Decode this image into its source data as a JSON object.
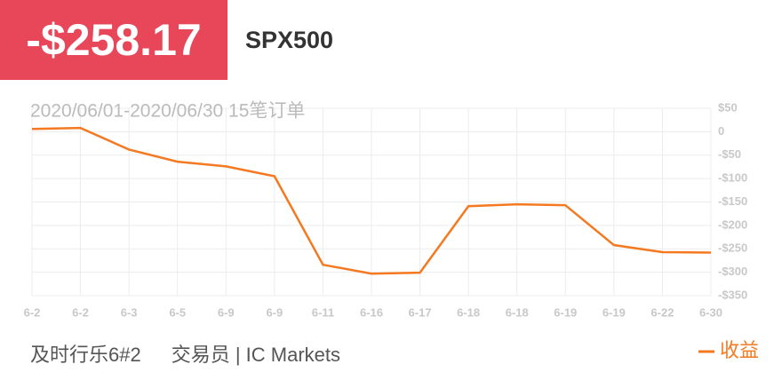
{
  "header": {
    "amount": "-$258.17",
    "symbol": "SPX500"
  },
  "chart_data": {
    "type": "line",
    "subtitle": "2020/06/01-2020/06/30 15笔订单",
    "categories": [
      "6-2",
      "6-2",
      "6-3",
      "6-5",
      "6-9",
      "6-9",
      "6-11",
      "6-16",
      "6-17",
      "6-18",
      "6-18",
      "6-19",
      "6-19",
      "6-22",
      "6-30"
    ],
    "series": [
      {
        "name": "收益",
        "color": "#f47920",
        "values": [
          6,
          8,
          -38,
          -64,
          -74,
          -95,
          -284,
          -303,
          -301,
          -159,
          -155,
          -157,
          -242,
          -257,
          -258
        ]
      }
    ],
    "ylim": [
      -350,
      50
    ],
    "yticks": [
      {
        "value": 50,
        "label": "$50"
      },
      0,
      {
        "value": -50,
        "label": "-$50"
      },
      {
        "value": -100,
        "label": "-$100"
      },
      {
        "value": -150,
        "label": "-$150"
      },
      {
        "value": -200,
        "label": "-$200"
      },
      {
        "value": -250,
        "label": "-$250"
      },
      {
        "value": -300,
        "label": "-$300"
      },
      {
        "value": -350,
        "label": "-$350"
      }
    ],
    "grid": true
  },
  "footer": {
    "account": "及时行乐6#2",
    "trader": "交易员 | IC Markets"
  }
}
